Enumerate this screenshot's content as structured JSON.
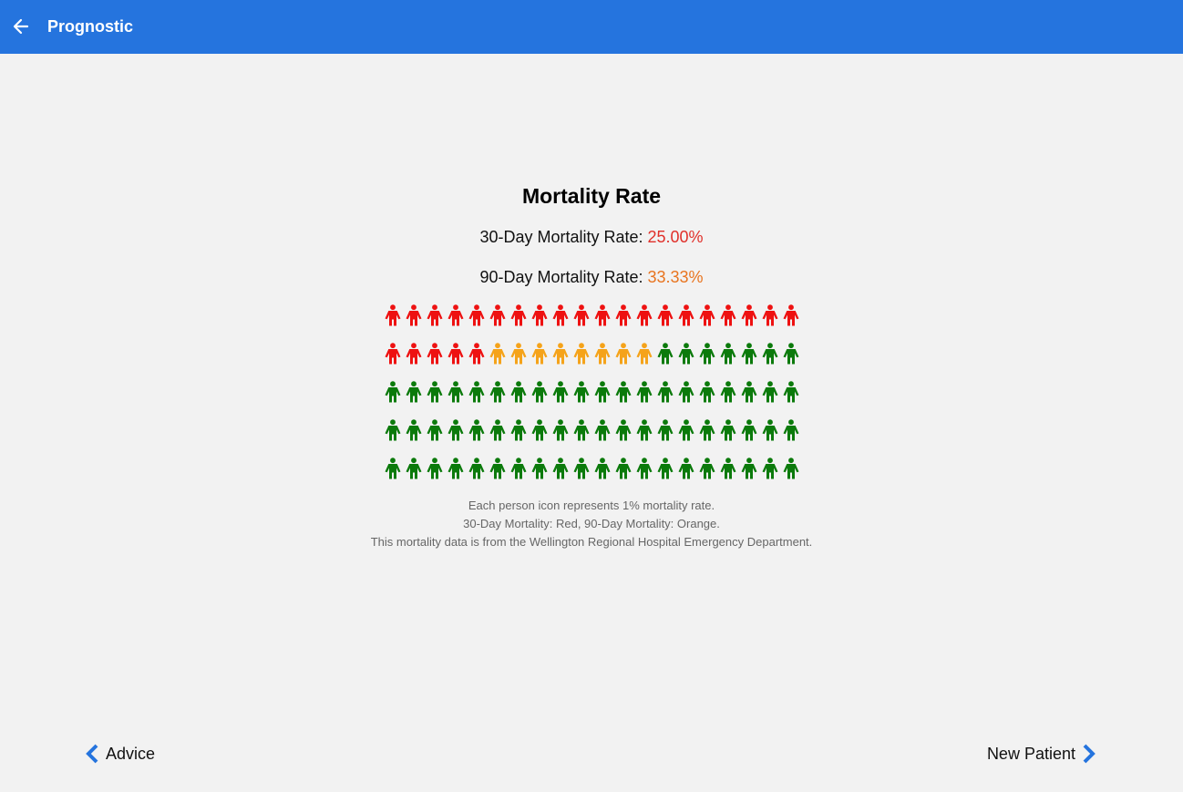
{
  "app_bar": {
    "title": "Prognostic",
    "back_icon": "arrow-left-icon",
    "color": "#2574de"
  },
  "main": {
    "title": "Mortality Rate",
    "rate_30": {
      "label": "30-Day Mortality Rate: ",
      "value": "25.00%",
      "color": "#e0302a"
    },
    "rate_90": {
      "label": "90-Day Mortality Rate: ",
      "value": "33.33%",
      "color": "#e8741f"
    },
    "icon_array": {
      "icon": "person-icon",
      "total": 100,
      "red_count": 25,
      "orange_count": 8,
      "green_count": 67,
      "colors": {
        "red": "#ee1111",
        "orange": "#f5a31a",
        "green": "#0b7a0b"
      }
    },
    "notes": [
      "Each person icon represents 1% mortality rate.",
      "30-Day Mortality: Red, 90-Day Mortality: Orange.",
      "This mortality data is from the Wellington Regional Hospital Emergency Department."
    ]
  },
  "footer": {
    "prev_label": "Advice",
    "prev_icon": "chevron-left-icon",
    "next_label": "New Patient",
    "next_icon": "chevron-right-icon",
    "accent": "#2574de"
  }
}
